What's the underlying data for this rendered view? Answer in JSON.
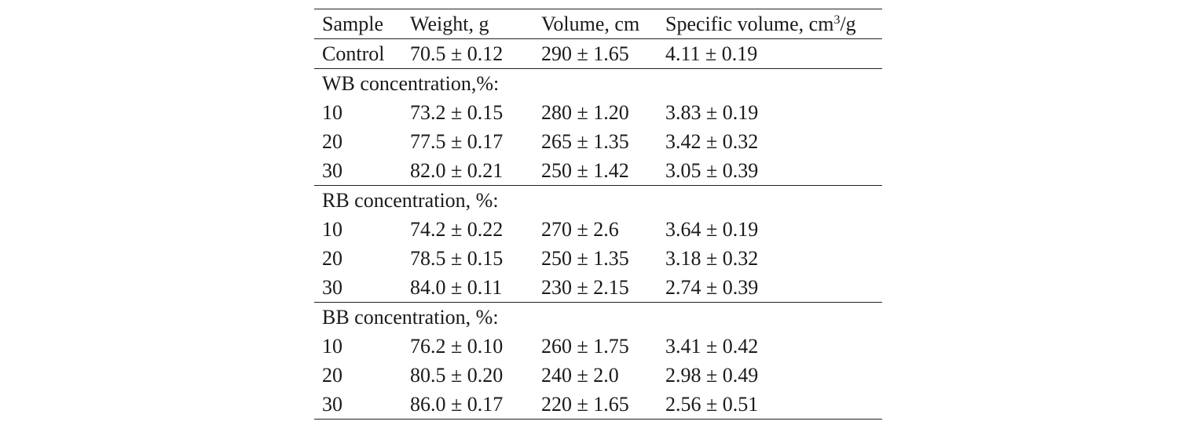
{
  "table": {
    "headers": {
      "sample": "Sample",
      "weight": "Weight, g",
      "volume": "Volume, cm",
      "specific_volume_prefix": "Specific volume, cm",
      "specific_volume_sup": "3",
      "specific_volume_suffix": "/g"
    },
    "control": {
      "sample": "Control",
      "weight": "70.5 ± 0.12",
      "volume": "290 ± 1.65",
      "specific_volume": "4.11 ± 0.19"
    },
    "groups": [
      {
        "label": "WB concentration,%:",
        "rows": [
          {
            "sample": "10",
            "weight": "73.2 ± 0.15",
            "volume": "280 ± 1.20",
            "specific_volume": "3.83 ± 0.19"
          },
          {
            "sample": "20",
            "weight": "77.5 ± 0.17",
            "volume": "265 ± 1.35",
            "specific_volume": "3.42 ± 0.32"
          },
          {
            "sample": "30",
            "weight": "82.0 ± 0.21",
            "volume": "250 ± 1.42",
            "specific_volume": "3.05 ± 0.39"
          }
        ]
      },
      {
        "label": "RB concentration, %:",
        "rows": [
          {
            "sample": "10",
            "weight": "74.2 ± 0.22",
            "volume": "270 ± 2.6",
            "specific_volume": "3.64 ± 0.19"
          },
          {
            "sample": "20",
            "weight": "78.5 ± 0.15",
            "volume": "250 ± 1.35",
            "specific_volume": "3.18 ± 0.32"
          },
          {
            "sample": "30",
            "weight": "84.0 ± 0.11",
            "volume": "230 ± 2.15",
            "specific_volume": "2.74 ± 0.39"
          }
        ]
      },
      {
        "label": "BB concentration, %:",
        "rows": [
          {
            "sample": "10",
            "weight": "76.2 ± 0.10",
            "volume": "260 ± 1.75",
            "specific_volume": "3.41 ± 0.42"
          },
          {
            "sample": "20",
            "weight": "80.5 ± 0.20",
            "volume": "240 ± 2.0",
            "specific_volume": "2.98 ± 0.49"
          },
          {
            "sample": "30",
            "weight": "86.0 ± 0.17",
            "volume": "220 ± 1.65",
            "specific_volume": "2.56 ± 0.51"
          }
        ]
      }
    ]
  }
}
